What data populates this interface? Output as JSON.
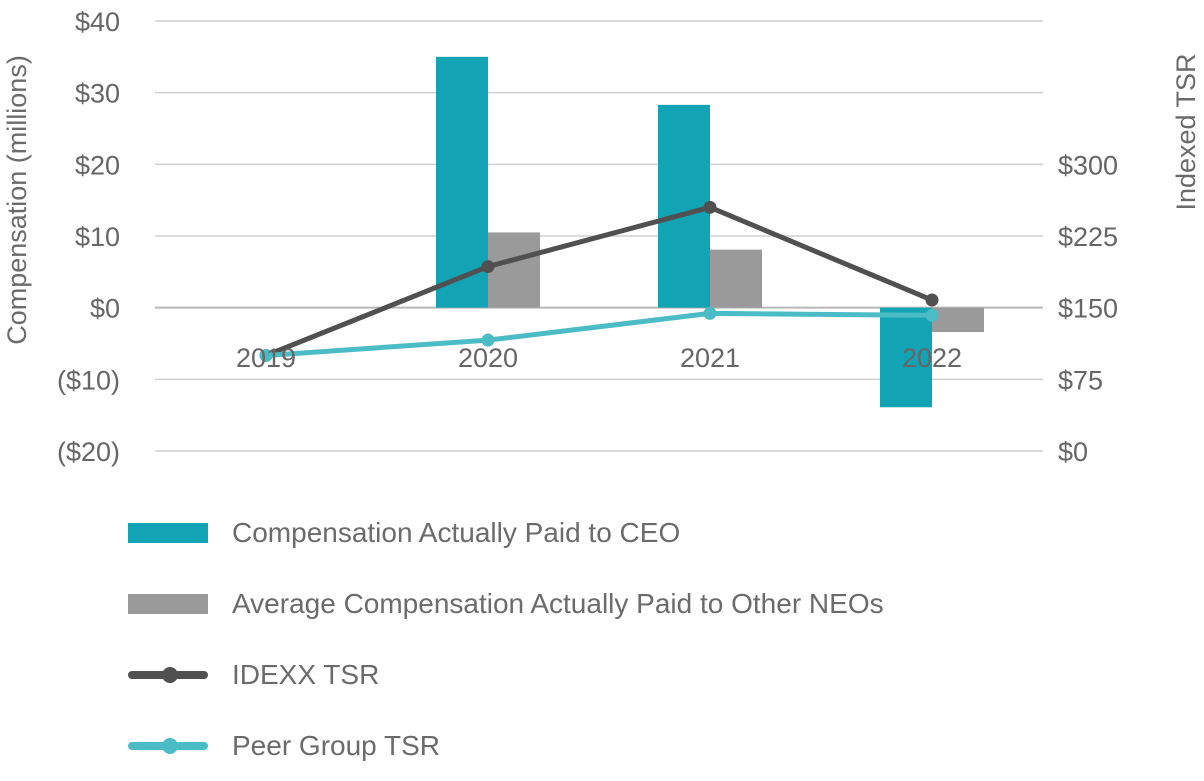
{
  "chart_data": {
    "type": "bar",
    "categories": [
      "2019",
      "2020",
      "2021",
      "2022"
    ],
    "left_axis": {
      "label": "Compensation (millions)",
      "range": [
        -20,
        40
      ],
      "ticks": [
        {
          "value": 40,
          "label": "$40"
        },
        {
          "value": 30,
          "label": "$30"
        },
        {
          "value": 20,
          "label": "$20"
        },
        {
          "value": 10,
          "label": "$10"
        },
        {
          "value": 0,
          "label": "$0"
        },
        {
          "value": -10,
          "label": "($10)"
        },
        {
          "value": -20,
          "label": "($20)"
        }
      ]
    },
    "right_axis": {
      "label": "Indexed TSR",
      "range": [
        0,
        300
      ],
      "ticks": [
        {
          "value": 300,
          "label": "$300"
        },
        {
          "value": 225,
          "label": "$225"
        },
        {
          "value": 150,
          "label": "$150"
        },
        {
          "value": 75,
          "label": "$75"
        },
        {
          "value": 0,
          "label": "$0"
        }
      ]
    },
    "bar_series": [
      {
        "name": "Compensation Actually Paid to CEO",
        "color": "#12a3b5",
        "values": [
          null,
          35.0,
          28.3,
          -13.9
        ]
      },
      {
        "name": "Average Compensation Actually Paid to Other NEOs",
        "color": "#9a9a9a",
        "values": [
          null,
          10.5,
          8.1,
          -3.4
        ]
      }
    ],
    "line_series": [
      {
        "name": "IDEXX TSR",
        "color": "#505050",
        "axis": "right",
        "values": [
          100,
          193,
          255,
          158
        ]
      },
      {
        "name": "Peer Group TSR",
        "color": "#4bbcc6",
        "axis": "right",
        "values": [
          100,
          116,
          144,
          142
        ]
      }
    ],
    "grid": true,
    "legend_position": "bottom"
  }
}
